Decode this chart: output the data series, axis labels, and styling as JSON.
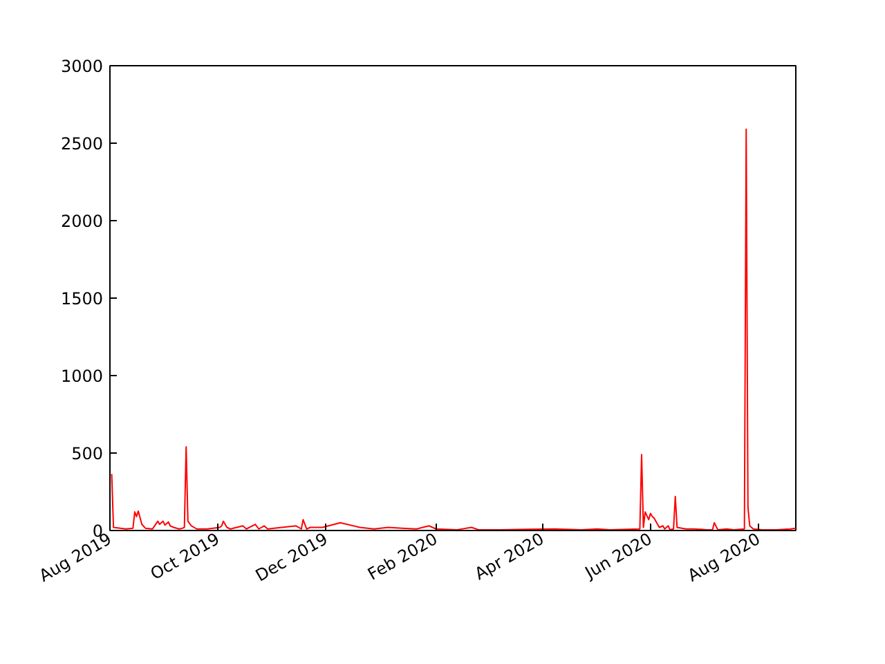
{
  "chart_data": {
    "type": "line",
    "color": "#ff0000",
    "grid": false,
    "marker": "none",
    "line_style": "solid",
    "x": [
      "2019-08-02",
      "2019-08-03",
      "2019-08-10",
      "2019-08-14",
      "2019-08-15",
      "2019-08-16",
      "2019-08-17",
      "2019-08-19",
      "2019-08-21",
      "2019-08-25",
      "2019-08-28",
      "2019-08-29",
      "2019-08-31",
      "2019-09-01",
      "2019-09-03",
      "2019-09-04",
      "2019-09-06",
      "2019-09-09",
      "2019-09-11",
      "2019-09-12",
      "2019-09-13",
      "2019-09-14",
      "2019-09-16",
      "2019-09-19",
      "2019-09-25",
      "2019-10-02",
      "2019-10-03",
      "2019-10-04",
      "2019-10-06",
      "2019-10-08",
      "2019-10-15",
      "2019-10-17",
      "2019-10-22",
      "2019-10-24",
      "2019-10-27",
      "2019-10-29",
      "2019-11-14",
      "2019-11-17",
      "2019-11-18",
      "2019-11-20",
      "2019-11-22",
      "2019-11-29",
      "2019-12-09",
      "2019-12-20",
      "2019-12-28",
      "2020-01-05",
      "2020-01-13",
      "2020-01-21",
      "2020-01-28",
      "2020-02-01",
      "2020-02-13",
      "2020-02-21",
      "2020-02-25",
      "2020-03-08",
      "2020-04-08",
      "2020-04-23",
      "2020-05-02",
      "2020-05-09",
      "2020-05-26",
      "2020-05-27",
      "2020-05-28",
      "2020-05-29",
      "2020-05-31",
      "2020-06-01",
      "2020-06-02",
      "2020-06-03",
      "2020-06-05",
      "2020-06-06",
      "2020-06-08",
      "2020-06-09",
      "2020-06-11",
      "2020-06-12",
      "2020-06-14",
      "2020-06-15",
      "2020-06-16",
      "2020-06-21",
      "2020-06-25",
      "2020-07-03",
      "2020-07-06",
      "2020-07-07",
      "2020-07-09",
      "2020-07-14",
      "2020-07-18",
      "2020-07-24",
      "2020-07-25",
      "2020-07-26",
      "2020-07-27",
      "2020-07-29",
      "2020-08-03",
      "2020-08-11",
      "2020-08-19",
      "2020-08-22"
    ],
    "values": [
      365,
      20,
      10,
      15,
      120,
      90,
      125,
      40,
      15,
      10,
      60,
      40,
      60,
      35,
      55,
      30,
      20,
      10,
      15,
      20,
      540,
      60,
      30,
      10,
      10,
      20,
      30,
      60,
      20,
      10,
      30,
      10,
      40,
      10,
      30,
      10,
      30,
      10,
      70,
      10,
      20,
      20,
      50,
      20,
      10,
      20,
      15,
      10,
      30,
      10,
      5,
      20,
      5,
      5,
      10,
      5,
      10,
      5,
      10,
      490,
      20,
      120,
      70,
      110,
      90,
      80,
      40,
      20,
      30,
      10,
      30,
      5,
      10,
      220,
      20,
      10,
      10,
      5,
      5,
      50,
      5,
      10,
      5,
      10,
      2590,
      150,
      30,
      10,
      5,
      5,
      10,
      15
    ],
    "xlim": [
      "2019-08-01",
      "2020-08-22"
    ],
    "xticks": [
      {
        "value": "2019-08-01",
        "label": "Aug 2019"
      },
      {
        "value": "2019-10-01",
        "label": "Oct 2019"
      },
      {
        "value": "2019-12-01",
        "label": "Dec 2019"
      },
      {
        "value": "2020-02-01",
        "label": "Feb 2020"
      },
      {
        "value": "2020-04-01",
        "label": "Apr 2020"
      },
      {
        "value": "2020-06-01",
        "label": "Jun 2020"
      },
      {
        "value": "2020-08-01",
        "label": "Aug 2020"
      }
    ],
    "ylim": [
      0,
      3000
    ],
    "yticks": [
      0,
      500,
      1000,
      1500,
      2000,
      2500,
      3000
    ]
  }
}
